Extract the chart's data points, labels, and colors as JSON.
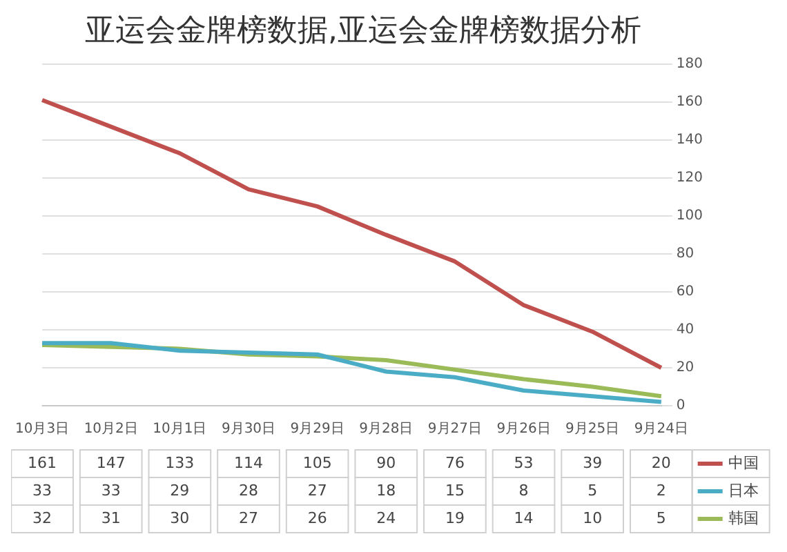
{
  "chart_data": {
    "type": "line",
    "title": "亚运会金牌榜数据,亚运会金牌榜数据分析",
    "categories": [
      "10月3日",
      "10月2日",
      "10月1日",
      "9月30日",
      "9月29日",
      "9月28日",
      "9月27日",
      "9月26日",
      "9月25日",
      "9月24日"
    ],
    "series": [
      {
        "name": "中国",
        "color": "#c0504d",
        "values": [
          161,
          147,
          133,
          114,
          105,
          90,
          76,
          53,
          39,
          20
        ]
      },
      {
        "name": "日本",
        "color": "#4bacc6",
        "values": [
          33,
          33,
          29,
          28,
          27,
          18,
          15,
          8,
          5,
          2
        ]
      },
      {
        "name": "韩国",
        "color": "#9bbb59",
        "values": [
          32,
          31,
          30,
          27,
          26,
          24,
          19,
          14,
          10,
          5
        ]
      }
    ],
    "ylim": [
      0,
      180
    ],
    "yticks": [
      0,
      20,
      40,
      60,
      80,
      100,
      120,
      140,
      160,
      180
    ],
    "grid": "y",
    "legend": "right",
    "data_labels": true,
    "marker": "none",
    "line_style": "solid"
  }
}
